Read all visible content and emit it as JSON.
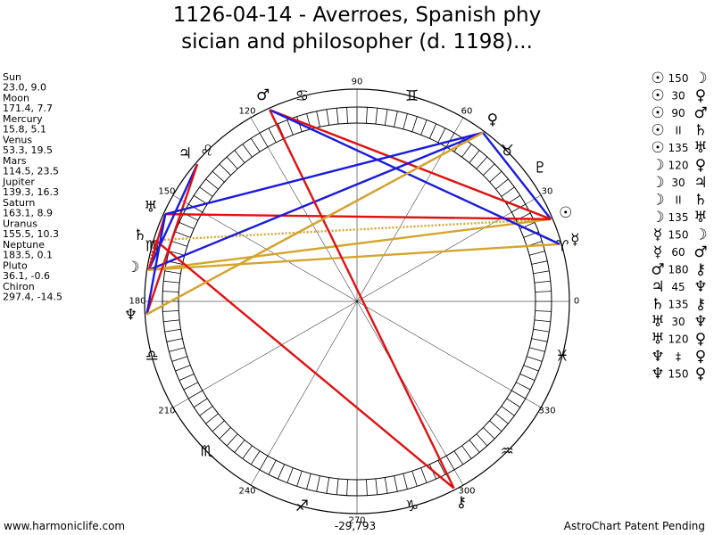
{
  "title_lines": [
    "1126-04-14 - Averroes, Spanish phy",
    "sician and philosopher (d. 1198)..."
  ],
  "planets": [
    {
      "name": "Sun",
      "glyph": "☉",
      "coords": "23.0, 9.0",
      "longitude": 23.0
    },
    {
      "name": "Moon",
      "glyph": "☽",
      "coords": "171.4, 7.7",
      "longitude": 171.4
    },
    {
      "name": "Mercury",
      "glyph": "☿",
      "coords": "15.8, 5.1",
      "longitude": 15.8
    },
    {
      "name": "Venus",
      "glyph": "♀",
      "coords": "53.3, 19.5",
      "longitude": 53.3
    },
    {
      "name": "Mars",
      "glyph": "♂",
      "coords": "114.5, 23.5",
      "longitude": 114.5
    },
    {
      "name": "Jupiter",
      "glyph": "♃",
      "coords": "139.3, 16.3",
      "longitude": 139.3
    },
    {
      "name": "Saturn",
      "glyph": "♄",
      "coords": "163.1, 8.9",
      "longitude": 163.1
    },
    {
      "name": "Uranus",
      "glyph": "♅",
      "coords": "155.5, 10.3",
      "longitude": 155.5
    },
    {
      "name": "Neptune",
      "glyph": "♆",
      "coords": "183.5, 0.1",
      "longitude": 183.5
    },
    {
      "name": "Pluto",
      "glyph": "♇",
      "coords": "36.1, -0.6",
      "longitude": 36.1
    },
    {
      "name": "Chiron",
      "glyph": "⚷",
      "coords": "297.4, -14.5",
      "longitude": 297.4
    }
  ],
  "signs": [
    "♈",
    "♉",
    "♊",
    "♋",
    "♌",
    "♍",
    "♎",
    "♏",
    "♐",
    "♑",
    "♒",
    "♓"
  ],
  "degree_marks": [
    0,
    30,
    60,
    90,
    120,
    150,
    180,
    210,
    240,
    270,
    300,
    330
  ],
  "aspects": [
    {
      "from": 0,
      "aspect": 150,
      "to": 1,
      "color": "#d4a52c"
    },
    {
      "from": 0,
      "aspect": 30,
      "to": 3,
      "color": "#1a1adf"
    },
    {
      "from": 0,
      "aspect": 90,
      "to": 4,
      "color": "#e01010"
    },
    {
      "from": 0,
      "aspect": "II",
      "to": 6,
      "color": "#d4a52c"
    },
    {
      "from": 0,
      "aspect": 135,
      "to": 7,
      "color": "#e01010"
    },
    {
      "from": 1,
      "aspect": 120,
      "to": 3,
      "color": "#1a1adf"
    },
    {
      "from": 1,
      "aspect": 30,
      "to": 5,
      "color": "#1a1adf"
    },
    {
      "from": 1,
      "aspect": "II",
      "to": 6,
      "color": "#c03030"
    },
    {
      "from": 1,
      "aspect": 135,
      "to": 7,
      "color": "#e01010"
    },
    {
      "from": 2,
      "aspect": 150,
      "to": 1,
      "color": "#d4a52c"
    },
    {
      "from": 2,
      "aspect": 60,
      "to": 4,
      "color": "#1a1adf"
    },
    {
      "from": 4,
      "aspect": 180,
      "to": 10,
      "color": "#e01010"
    },
    {
      "from": 5,
      "aspect": 45,
      "to": 8,
      "color": "#e01010"
    },
    {
      "from": 6,
      "aspect": 135,
      "to": 10,
      "color": "#e01010"
    },
    {
      "from": 7,
      "aspect": 30,
      "to": 8,
      "color": "#1a1adf"
    },
    {
      "from": 7,
      "aspect": 120,
      "to": 3,
      "color": "#1a1adf"
    },
    {
      "from": 8,
      "aspect": "‡",
      "to": 3,
      "color": "#c03030"
    },
    {
      "from": 8,
      "aspect": 150,
      "to": 3,
      "color": "#d4a52c"
    }
  ],
  "footer": {
    "left": "www.harmoniclife.com",
    "center": "-29,793",
    "right": "AstroChart Patent Pending"
  }
}
